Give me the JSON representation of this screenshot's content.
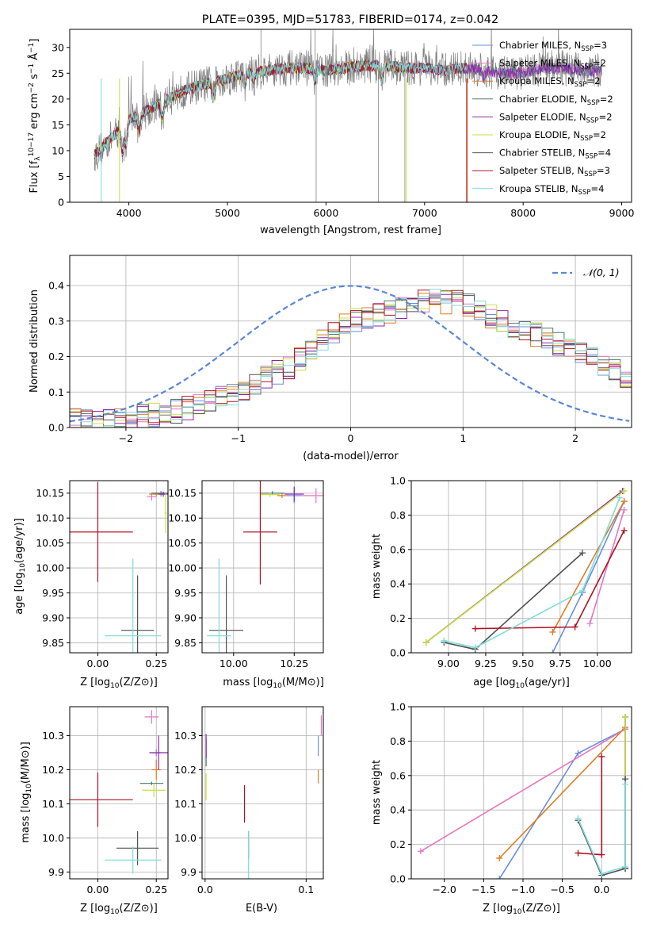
{
  "title": "PLATE=0395, MJD=51783, FIBERID=0174, z=0.042",
  "colors": {
    "chabrier_miles": "#6a8fd8",
    "salpeter_miles": "#e377c2",
    "kroupa_miles": "#e07b22",
    "chabrier_elodie": "#4c7a6a",
    "salpeter_elodie": "#8e24aa",
    "kroupa_elodie": "#c9e040",
    "chabrier_stelib": "#505050",
    "salpeter_stelib": "#b01020",
    "kroupa_stelib": "#80dcdc",
    "data": "#808080",
    "normal": "#5b86d6"
  },
  "chart_data": [
    {
      "id": "spectrum",
      "type": "line",
      "title": "PLATE=0395, MJD=51783, FIBERID=0174, z=0.042",
      "xlabel": "wavelength [Angstrom, rest frame]",
      "ylabel": "Flux [f",
      "xlim": [
        3400,
        9100
      ],
      "ylim": [
        0,
        33.5
      ],
      "xticks": [
        "4000",
        "5000",
        "6000",
        "7000",
        "8000",
        "9000"
      ],
      "yticks": [
        "0",
        "5",
        "10",
        "15",
        "20",
        "25",
        "30"
      ],
      "grid": false,
      "legend_position": "right",
      "legend": [
        {
          "name": "Chabrier MILES, N",
          "sub": "SSP",
          "eq": "=3"
        },
        {
          "name": "Salpeter MILES, N",
          "sub": "SSP",
          "eq": "=2"
        },
        {
          "name": "Kroupa MILES, N",
          "sub": "SSP",
          "eq": "=2"
        },
        {
          "name": "Chabrier ELODIE, N",
          "sub": "SSP",
          "eq": "=2"
        },
        {
          "name": "Salpeter ELODIE, N",
          "sub": "SSP",
          "eq": "=2"
        },
        {
          "name": "Kroupa ELODIE, N",
          "sub": "SSP",
          "eq": "=2"
        },
        {
          "name": "Chabrier STELIB, N",
          "sub": "SSP",
          "eq": "=4"
        },
        {
          "name": "Salpeter STELIB, N",
          "sub": "SSP",
          "eq": "=3"
        },
        {
          "name": "Kroupa STELIB, N",
          "sub": "SSP",
          "eq": "=4"
        }
      ],
      "continuum": [
        [
          3650,
          9
        ],
        [
          3800,
          12
        ],
        [
          3900,
          14
        ],
        [
          4000,
          16
        ],
        [
          4200,
          18
        ],
        [
          4400,
          20
        ],
        [
          4600,
          22
        ],
        [
          4800,
          23
        ],
        [
          5000,
          24
        ],
        [
          5200,
          25
        ],
        [
          5400,
          25.5
        ],
        [
          5600,
          26
        ],
        [
          5800,
          26
        ],
        [
          6000,
          25.5
        ],
        [
          6200,
          26
        ],
        [
          6400,
          26.5
        ],
        [
          6600,
          26.5
        ],
        [
          6800,
          26
        ],
        [
          7000,
          26
        ],
        [
          7200,
          25.5
        ],
        [
          7400,
          26
        ],
        [
          7600,
          25.5
        ],
        [
          7800,
          25
        ],
        [
          8000,
          25
        ],
        [
          8200,
          26
        ],
        [
          8400,
          26
        ],
        [
          8600,
          25.5
        ],
        [
          8800,
          25.5
        ]
      ]
    },
    {
      "id": "residuals",
      "type": "histogram",
      "xlabel": "(data-model)/error",
      "ylabel": "Normed distribution",
      "xlim": [
        -2.5,
        2.5
      ],
      "ylim": [
        0,
        0.485
      ],
      "xticks": [
        "−2",
        "−1",
        "0",
        "1",
        "2"
      ],
      "yticks": [
        "0.0",
        "0.1",
        "0.2",
        "0.3",
        "0.4"
      ],
      "grid": true,
      "legend_position": "top-right",
      "legend": {
        "label": "N(0,1)"
      },
      "bin_width": 0.1,
      "hist_shape": [
        [
          -2.5,
          0.02
        ],
        [
          -2.0,
          0.02
        ],
        [
          -1.5,
          0.05
        ],
        [
          -1.0,
          0.1
        ],
        [
          -0.5,
          0.18
        ],
        [
          0.0,
          0.3
        ],
        [
          0.3,
          0.32
        ],
        [
          0.6,
          0.36
        ],
        [
          1.0,
          0.35
        ],
        [
          1.5,
          0.28
        ],
        [
          2.0,
          0.22
        ],
        [
          2.5,
          0.13
        ]
      ]
    },
    {
      "id": "age_vs_Z",
      "type": "errorbar",
      "xlabel": "Z [log",
      "ylabel": "age  [log",
      "xlim": [
        -0.12,
        0.3
      ],
      "ylim": [
        9.83,
        10.175
      ],
      "xticks": [
        "0.00",
        "0.25"
      ],
      "yticks": [
        "9.85",
        "9.90",
        "9.95",
        "10.00",
        "10.05",
        "10.10",
        "10.15"
      ],
      "grid": true,
      "points": [
        {
          "c": "chabrier_miles",
          "x": 0.27,
          "y": 10.148,
          "ex": 0.03,
          "ey": 0.005
        },
        {
          "c": "salpeter_miles",
          "x": 0.23,
          "y": 10.143,
          "ex": 0.02,
          "ey": 0.008
        },
        {
          "c": "kroupa_miles",
          "x": 0.25,
          "y": 10.148,
          "ex": 0.03,
          "ey": 0.004
        },
        {
          "c": "chabrier_elodie",
          "x": 0.27,
          "y": 10.15,
          "ex": 0.04,
          "ey": 0.004
        },
        {
          "c": "salpeter_elodie",
          "x": 0.28,
          "y": 10.148,
          "ex": 0.02,
          "ey": 0.005
        },
        {
          "c": "kroupa_elodie",
          "x": 0.29,
          "y": 10.11,
          "ex": 0.005,
          "ey": 0.04
        },
        {
          "c": "chabrier_stelib",
          "x": 0.17,
          "y": 9.875,
          "ex": 0.07,
          "ey": 0.11
        },
        {
          "c": "salpeter_stelib",
          "x": 0.0,
          "y": 10.072,
          "ex": 0.15,
          "ey": 0.1
        },
        {
          "c": "kroupa_stelib",
          "x": 0.15,
          "y": 9.864,
          "ex": 0.12,
          "ey": 0.155
        }
      ]
    },
    {
      "id": "age_vs_mass",
      "type": "errorbar",
      "xlabel": "mass [log",
      "ylabel": "",
      "xlim": [
        9.87,
        10.37
      ],
      "ylim": [
        9.83,
        10.175
      ],
      "xticks": [
        "10.00",
        "10.25"
      ],
      "yticks": [
        "9.85",
        "9.90",
        "9.95",
        "10.00",
        "10.05",
        "10.10",
        "10.15"
      ],
      "grid": true,
      "points": [
        {
          "c": "chabrier_miles",
          "x": 10.25,
          "y": 10.145,
          "ex": 0.03,
          "ey": 0.015
        },
        {
          "c": "salpeter_miles",
          "x": 10.34,
          "y": 10.145,
          "ex": 0.06,
          "ey": 0.015
        },
        {
          "c": "kroupa_miles",
          "x": 10.2,
          "y": 10.145,
          "ex": 0.02,
          "ey": 0.005
        },
        {
          "c": "chabrier_elodie",
          "x": 10.16,
          "y": 10.15,
          "ex": 0.05,
          "ey": 0.004
        },
        {
          "c": "salpeter_elodie",
          "x": 10.25,
          "y": 10.148,
          "ex": 0.04,
          "ey": 0.015
        },
        {
          "c": "kroupa_elodie",
          "x": 10.15,
          "y": 10.147,
          "ex": 0.04,
          "ey": 0.005
        },
        {
          "c": "chabrier_stelib",
          "x": 9.97,
          "y": 9.875,
          "ex": 0.07,
          "ey": 0.11
        },
        {
          "c": "salpeter_stelib",
          "x": 10.11,
          "y": 10.072,
          "ex": 0.07,
          "ey": 0.105
        },
        {
          "c": "kroupa_stelib",
          "x": 9.94,
          "y": 9.864,
          "ex": 0.05,
          "ey": 0.155
        }
      ]
    },
    {
      "id": "weight_vs_age",
      "type": "line",
      "xlabel": "age  [log",
      "ylabel": "mass weight",
      "xlim": [
        8.75,
        10.23
      ],
      "ylim": [
        0,
        1.0
      ],
      "xticks": [
        "9.00",
        "9.25",
        "9.50",
        "9.75",
        "10.00"
      ],
      "yticks": [
        "0.0",
        "0.2",
        "0.4",
        "0.6",
        "0.8",
        "1.0"
      ],
      "grid": true,
      "series": [
        {
          "c": "chabrier_miles",
          "x": [
            9.7,
            9.9,
            10.18
          ],
          "y": [
            0.0,
            0.35,
            0.88
          ]
        },
        {
          "c": "salpeter_miles",
          "x": [
            9.95,
            10.18
          ],
          "y": [
            0.17,
            0.83
          ]
        },
        {
          "c": "kroupa_miles",
          "x": [
            9.7,
            10.18
          ],
          "y": [
            0.12,
            0.88
          ]
        },
        {
          "c": "chabrier_elodie",
          "x": [
            8.85,
            10.17
          ],
          "y": [
            0.06,
            0.94
          ]
        },
        {
          "c": "salpeter_elodie",
          "x": [
            8.85,
            10.17
          ],
          "y": [
            0.06,
            0.94
          ]
        },
        {
          "c": "kroupa_elodie",
          "x": [
            8.85,
            10.18
          ],
          "y": [
            0.06,
            0.94
          ]
        },
        {
          "c": "chabrier_stelib",
          "x": [
            8.97,
            9.18,
            9.9
          ],
          "y": [
            0.06,
            0.02,
            0.58
          ]
        },
        {
          "c": "salpeter_stelib",
          "x": [
            9.18,
            9.85,
            10.18
          ],
          "y": [
            0.14,
            0.15,
            0.71
          ]
        },
        {
          "c": "kroupa_stelib",
          "x": [
            8.97,
            9.18,
            9.9,
            10.15
          ],
          "y": [
            0.07,
            0.03,
            0.36,
            0.9
          ]
        }
      ]
    },
    {
      "id": "mass_vs_Z",
      "type": "errorbar",
      "xlabel": "Z [log",
      "ylabel": "mass [log",
      "xlim": [
        -0.12,
        0.3
      ],
      "ylim": [
        9.88,
        10.385
      ],
      "xticks": [
        "0.00",
        "0.25"
      ],
      "yticks": [
        "9.9",
        "10.0",
        "10.1",
        "10.2",
        "10.3"
      ],
      "grid": true,
      "points": [
        {
          "c": "chabrier_miles",
          "x": 0.25,
          "y": 10.25,
          "ex": 0.02,
          "ey": 0.01
        },
        {
          "c": "salpeter_miles",
          "x": 0.23,
          "y": 10.355,
          "ex": 0.03,
          "ey": 0.02
        },
        {
          "c": "kroupa_miles",
          "x": 0.25,
          "y": 10.2,
          "ex": 0.02,
          "ey": 0.03
        },
        {
          "c": "chabrier_elodie",
          "x": 0.23,
          "y": 10.16,
          "ex": 0.05,
          "ey": 0.005
        },
        {
          "c": "salpeter_elodie",
          "x": 0.26,
          "y": 10.25,
          "ex": 0.04,
          "ey": 0.05
        },
        {
          "c": "kroupa_elodie",
          "x": 0.24,
          "y": 10.14,
          "ex": 0.05,
          "ey": 0.02
        },
        {
          "c": "chabrier_stelib",
          "x": 0.17,
          "y": 9.97,
          "ex": 0.09,
          "ey": 0.05
        },
        {
          "c": "salpeter_stelib",
          "x": 0.0,
          "y": 10.112,
          "ex": 0.15,
          "ey": 0.08
        },
        {
          "c": "kroupa_stelib",
          "x": 0.15,
          "y": 9.935,
          "ex": 0.12,
          "ey": 0.04
        }
      ]
    },
    {
      "id": "mass_vs_EBV",
      "type": "errorbar",
      "xlabel": "E(B-V)",
      "ylabel": "",
      "xlim": [
        -0.003,
        0.117
      ],
      "ylim": [
        9.88,
        10.385
      ],
      "xticks": [
        "0.0",
        "0.1"
      ],
      "yticks": [
        "9.9",
        "10.0",
        "10.1",
        "10.2",
        "10.3"
      ],
      "grid": true,
      "points": [
        {
          "c": "chabrier_miles",
          "x": 0.112,
          "y": 10.27,
          "ex": 0.0,
          "ey": 0.03
        },
        {
          "c": "salpeter_miles",
          "x": 0.115,
          "y": 10.33,
          "ex": 0.0,
          "ey": 0.03
        },
        {
          "c": "kroupa_miles",
          "x": 0.112,
          "y": 10.18,
          "ex": 0.0,
          "ey": 0.02
        },
        {
          "c": "chabrier_elodie",
          "x": 0.001,
          "y": 10.25,
          "ex": 0.0,
          "ey": 0.04
        },
        {
          "c": "salpeter_elodie",
          "x": 0.001,
          "y": 10.27,
          "ex": 0.0,
          "ey": 0.035
        },
        {
          "c": "kroupa_elodie",
          "x": 0.001,
          "y": 10.15,
          "ex": 0.0,
          "ey": 0.04
        },
        {
          "c": "chabrier_stelib",
          "x": 0.043,
          "y": 9.98,
          "ex": 0.0,
          "ey": 0.04
        },
        {
          "c": "salpeter_stelib",
          "x": 0.039,
          "y": 10.1,
          "ex": 0.0,
          "ey": 0.055
        },
        {
          "c": "kroupa_stelib",
          "x": 0.043,
          "y": 9.95,
          "ex": 0.0,
          "ey": 0.07
        }
      ]
    },
    {
      "id": "weight_vs_Z",
      "type": "line",
      "xlabel": "Z [log",
      "ylabel": "mass weight",
      "xlim": [
        -2.42,
        0.38
      ],
      "ylim": [
        0,
        1.0
      ],
      "xticks": [
        "−2.0",
        "−1.5",
        "−1.0",
        "−0.5",
        "0.0"
      ],
      "yticks": [
        "0.0",
        "0.2",
        "0.4",
        "0.6",
        "0.8",
        "1.0"
      ],
      "grid": true,
      "series": [
        {
          "c": "chabrier_miles",
          "x": [
            -1.3,
            -0.3,
            0.3
          ],
          "y": [
            0.0,
            0.73,
            0.87
          ]
        },
        {
          "c": "salpeter_miles",
          "x": [
            -2.3,
            0.3
          ],
          "y": [
            0.16,
            0.87
          ]
        },
        {
          "c": "kroupa_miles",
          "x": [
            -1.3,
            0.3
          ],
          "y": [
            0.12,
            0.88
          ]
        },
        {
          "c": "chabrier_elodie",
          "x": [
            0.3,
            0.3
          ],
          "y": [
            0.06,
            0.94
          ]
        },
        {
          "c": "salpeter_elodie",
          "x": [
            0.3,
            0.3
          ],
          "y": [
            0.06,
            0.94
          ]
        },
        {
          "c": "kroupa_elodie",
          "x": [
            0.3,
            0.3
          ],
          "y": [
            0.06,
            0.94
          ]
        },
        {
          "c": "chabrier_stelib",
          "x": [
            -0.3,
            0.0,
            0.3,
            0.3
          ],
          "y": [
            0.34,
            0.02,
            0.06,
            0.58
          ]
        },
        {
          "c": "salpeter_stelib",
          "x": [
            -0.3,
            0.0,
            0.0
          ],
          "y": [
            0.15,
            0.14,
            0.71
          ]
        },
        {
          "c": "kroupa_stelib",
          "x": [
            -0.3,
            0.0,
            0.3,
            0.3
          ],
          "y": [
            0.35,
            0.03,
            0.07,
            0.55
          ]
        }
      ]
    }
  ]
}
